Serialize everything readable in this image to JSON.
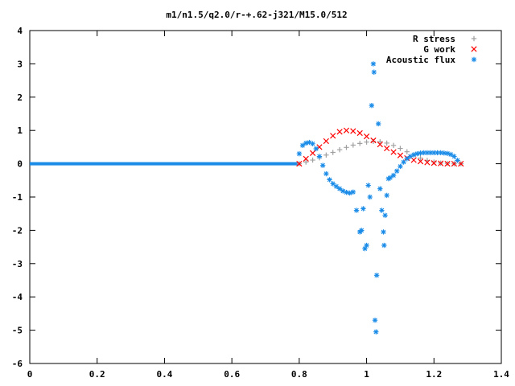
{
  "chart_data": {
    "type": "scatter",
    "title": "m1/n1.5/q2.0/r-+.62-j321/M15.0/512",
    "xlabel": "",
    "ylabel": "",
    "xlim": [
      0,
      1.4
    ],
    "ylim": [
      -6,
      4
    ],
    "x_ticks": [
      "0",
      "0.2",
      "0.4",
      "0.6",
      "0.8",
      "1",
      "1.2",
      "1.4"
    ],
    "y_ticks": [
      "4",
      "3",
      "2",
      "1",
      "0",
      "-1",
      "-2",
      "-3",
      "-4",
      "-5",
      "-6"
    ],
    "grid": false,
    "legend_position": "top-right",
    "series": [
      {
        "name": "R stress",
        "marker": "plus",
        "color": "#a0a0a0",
        "points": [
          [
            0.8,
            0.0
          ],
          [
            0.82,
            0.05
          ],
          [
            0.84,
            0.11
          ],
          [
            0.86,
            0.18
          ],
          [
            0.88,
            0.26
          ],
          [
            0.9,
            0.34
          ],
          [
            0.92,
            0.42
          ],
          [
            0.94,
            0.49
          ],
          [
            0.96,
            0.56
          ],
          [
            0.98,
            0.61
          ],
          [
            1.0,
            0.65
          ],
          [
            1.02,
            0.67
          ],
          [
            1.04,
            0.66
          ],
          [
            1.06,
            0.62
          ],
          [
            1.08,
            0.55
          ],
          [
            1.1,
            0.46
          ],
          [
            1.12,
            0.36
          ],
          [
            1.14,
            0.26
          ],
          [
            1.16,
            0.17
          ],
          [
            1.18,
            0.1
          ],
          [
            1.2,
            0.05
          ],
          [
            1.22,
            0.02
          ],
          [
            1.24,
            0.01
          ],
          [
            1.26,
            0.0
          ],
          [
            1.28,
            0.0
          ]
        ]
      },
      {
        "name": "G work",
        "marker": "cross",
        "color": "#ff0000",
        "points": [
          [
            0.8,
            0.0
          ],
          [
            0.82,
            0.15
          ],
          [
            0.84,
            0.32
          ],
          [
            0.86,
            0.5
          ],
          [
            0.88,
            0.68
          ],
          [
            0.9,
            0.84
          ],
          [
            0.92,
            0.96
          ],
          [
            0.94,
            1.0
          ],
          [
            0.96,
            0.98
          ],
          [
            0.98,
            0.92
          ],
          [
            1.0,
            0.82
          ],
          [
            1.02,
            0.7
          ],
          [
            1.04,
            0.58
          ],
          [
            1.06,
            0.46
          ],
          [
            1.08,
            0.35
          ],
          [
            1.1,
            0.25
          ],
          [
            1.12,
            0.17
          ],
          [
            1.14,
            0.11
          ],
          [
            1.16,
            0.07
          ],
          [
            1.18,
            0.04
          ],
          [
            1.2,
            0.02
          ],
          [
            1.22,
            0.01
          ],
          [
            1.24,
            0.0
          ],
          [
            1.26,
            0.0
          ],
          [
            1.28,
            0.0
          ]
        ]
      },
      {
        "name": "Acoustic flux",
        "marker": "star",
        "color": "#1a8ce8",
        "points": [
          [
            0.8,
            0.3
          ],
          [
            0.81,
            0.55
          ],
          [
            0.82,
            0.62
          ],
          [
            0.83,
            0.64
          ],
          [
            0.84,
            0.6
          ],
          [
            0.85,
            0.45
          ],
          [
            0.86,
            0.22
          ],
          [
            0.87,
            -0.05
          ],
          [
            0.88,
            -0.3
          ],
          [
            0.89,
            -0.48
          ],
          [
            0.9,
            -0.6
          ],
          [
            0.91,
            -0.68
          ],
          [
            0.92,
            -0.75
          ],
          [
            0.93,
            -0.82
          ],
          [
            0.94,
            -0.86
          ],
          [
            0.95,
            -0.88
          ],
          [
            0.96,
            -0.85
          ],
          [
            0.97,
            -1.4
          ],
          [
            0.98,
            -2.05
          ],
          [
            0.985,
            -2.0
          ],
          [
            0.99,
            -1.35
          ],
          [
            0.995,
            -2.55
          ],
          [
            1.0,
            -2.45
          ],
          [
            1.005,
            -0.65
          ],
          [
            1.01,
            -1.0
          ],
          [
            1.015,
            1.75
          ],
          [
            1.02,
            3.0
          ],
          [
            1.022,
            2.75
          ],
          [
            1.025,
            -4.7
          ],
          [
            1.028,
            -5.05
          ],
          [
            1.03,
            -3.35
          ],
          [
            1.035,
            1.2
          ],
          [
            1.04,
            -0.75
          ],
          [
            1.045,
            -1.4
          ],
          [
            1.05,
            -2.05
          ],
          [
            1.052,
            -2.45
          ],
          [
            1.055,
            -1.55
          ],
          [
            1.06,
            -0.95
          ],
          [
            1.065,
            -0.45
          ],
          [
            1.07,
            -0.42
          ],
          [
            1.08,
            -0.35
          ],
          [
            1.09,
            -0.22
          ],
          [
            1.1,
            -0.08
          ],
          [
            1.11,
            0.05
          ],
          [
            1.12,
            0.15
          ],
          [
            1.13,
            0.22
          ],
          [
            1.14,
            0.27
          ],
          [
            1.15,
            0.3
          ],
          [
            1.16,
            0.32
          ],
          [
            1.17,
            0.33
          ],
          [
            1.18,
            0.33
          ],
          [
            1.19,
            0.33
          ],
          [
            1.2,
            0.33
          ],
          [
            1.21,
            0.33
          ],
          [
            1.22,
            0.33
          ],
          [
            1.23,
            0.32
          ],
          [
            1.24,
            0.31
          ],
          [
            1.25,
            0.28
          ],
          [
            1.26,
            0.22
          ],
          [
            1.27,
            0.1
          ]
        ]
      }
    ]
  }
}
